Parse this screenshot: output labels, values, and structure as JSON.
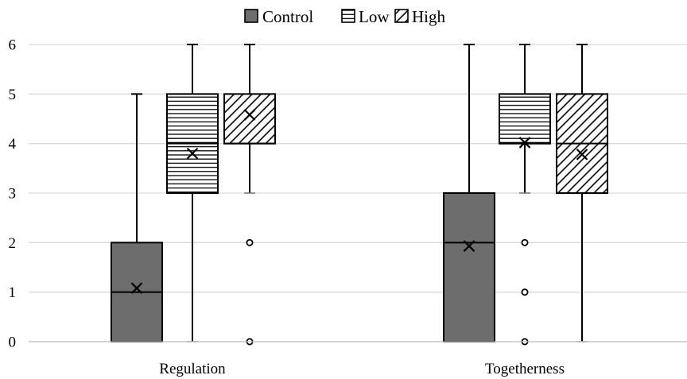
{
  "chart_data": {
    "type": "box",
    "title": "",
    "xlabel": "",
    "ylabel": "",
    "ylim": [
      0,
      6
    ],
    "yticks": [
      0,
      1,
      2,
      3,
      4,
      5,
      6
    ],
    "grid": true,
    "legend_position": "top-center",
    "categories": [
      "Regulation",
      "Togetherness"
    ],
    "series": [
      {
        "name": "Control",
        "pattern": "solid",
        "color": "#6d6d6d",
        "boxes": [
          {
            "min": 0,
            "q1": 0,
            "median": 1,
            "q3": 2,
            "max": 5,
            "mean": 1.08,
            "outliers": []
          },
          {
            "min": 0,
            "q1": 0,
            "median": 2,
            "q3": 3,
            "max": 6,
            "mean": 1.93,
            "outliers": []
          }
        ]
      },
      {
        "name": "Low",
        "pattern": "horizontal-lines",
        "color": "#ffffff",
        "boxes": [
          {
            "min": 0,
            "q1": 3,
            "median": 4,
            "q3": 5,
            "max": 6,
            "mean": 3.8,
            "outliers": []
          },
          {
            "min": 3,
            "q1": 4,
            "median": 4,
            "q3": 5,
            "max": 6,
            "mean": 4.02,
            "outliers": [
              2,
              1,
              0
            ]
          }
        ]
      },
      {
        "name": "High",
        "pattern": "diagonal-lines",
        "color": "#ffffff",
        "boxes": [
          {
            "min": 3,
            "q1": 4,
            "median": 4,
            "q3": 5,
            "max": 6,
            "mean": 4.58,
            "outliers": [
              2,
              0
            ]
          },
          {
            "min": 0,
            "q1": 3,
            "median": 4,
            "q3": 5,
            "max": 6,
            "mean": 3.78,
            "outliers": []
          }
        ]
      }
    ]
  }
}
